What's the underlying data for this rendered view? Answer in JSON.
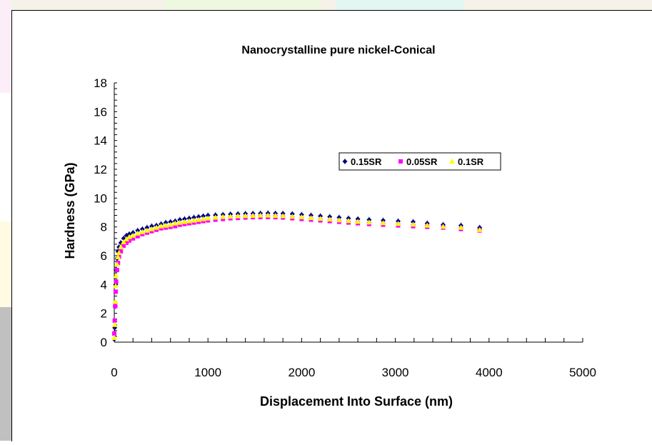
{
  "colors": {
    "series_0": "#000080",
    "series_1": "#ff00ff",
    "series_2": "#ffff00",
    "axis": "#000000",
    "background_edge": "#c0c0c0"
  },
  "legend": {
    "placement": "top-right"
  },
  "chart_data": {
    "type": "scatter",
    "title": "Nanocrystalline pure nickel-Conical",
    "xlabel": "Displacement Into Surface (nm)",
    "ylabel": "Hardness (GPa)",
    "xlim": [
      0,
      5000
    ],
    "ylim": [
      0,
      18
    ],
    "xticks": [
      "0",
      "1000",
      "2000",
      "3000",
      "4000",
      "5000"
    ],
    "yticks": [
      "0",
      "2",
      "4",
      "6",
      "8",
      "10",
      "12",
      "14",
      "16",
      "18"
    ],
    "grid": false,
    "series": [
      {
        "name": "0.15SR",
        "marker": "diamond",
        "points": [
          [
            0,
            0.2
          ],
          [
            5,
            1
          ],
          [
            10,
            2.5
          ],
          [
            15,
            4
          ],
          [
            20,
            5
          ],
          [
            30,
            5.8
          ],
          [
            40,
            6.3
          ],
          [
            50,
            6.6
          ],
          [
            70,
            6.9
          ],
          [
            100,
            7.2
          ],
          [
            130,
            7.4
          ],
          [
            160,
            7.5
          ],
          [
            200,
            7.6
          ],
          [
            250,
            7.75
          ],
          [
            300,
            7.85
          ],
          [
            350,
            7.95
          ],
          [
            400,
            8.05
          ],
          [
            450,
            8.1
          ],
          [
            500,
            8.2
          ],
          [
            550,
            8.3
          ],
          [
            600,
            8.35
          ],
          [
            650,
            8.4
          ],
          [
            700,
            8.5
          ],
          [
            750,
            8.55
          ],
          [
            800,
            8.6
          ],
          [
            850,
            8.65
          ],
          [
            900,
            8.7
          ],
          [
            950,
            8.75
          ],
          [
            1000,
            8.8
          ],
          [
            1080,
            8.82
          ],
          [
            1160,
            8.85
          ],
          [
            1240,
            8.88
          ],
          [
            1320,
            8.9
          ],
          [
            1400,
            8.92
          ],
          [
            1480,
            8.93
          ],
          [
            1560,
            8.94
          ],
          [
            1640,
            8.95
          ],
          [
            1720,
            8.94
          ],
          [
            1800,
            8.93
          ],
          [
            1900,
            8.9
          ],
          [
            2000,
            8.85
          ],
          [
            2100,
            8.8
          ],
          [
            2200,
            8.75
          ],
          [
            2300,
            8.7
          ],
          [
            2400,
            8.65
          ],
          [
            2500,
            8.6
          ],
          [
            2600,
            8.55
          ],
          [
            2720,
            8.5
          ],
          [
            2870,
            8.45
          ],
          [
            3030,
            8.4
          ],
          [
            3190,
            8.35
          ],
          [
            3340,
            8.25
          ],
          [
            3510,
            8.15
          ],
          [
            3700,
            8.1
          ],
          [
            3900,
            7.95
          ]
        ]
      },
      {
        "name": "0.05SR",
        "marker": "square",
        "points": [
          [
            0,
            0.6
          ],
          [
            5,
            1.5
          ],
          [
            10,
            2.5
          ],
          [
            15,
            3.5
          ],
          [
            20,
            4.2
          ],
          [
            30,
            5
          ],
          [
            40,
            5.5
          ],
          [
            50,
            5.9
          ],
          [
            70,
            6.3
          ],
          [
            100,
            6.7
          ],
          [
            130,
            6.9
          ],
          [
            160,
            7.05
          ],
          [
            200,
            7.2
          ],
          [
            250,
            7.35
          ],
          [
            300,
            7.5
          ],
          [
            350,
            7.6
          ],
          [
            400,
            7.7
          ],
          [
            450,
            7.8
          ],
          [
            500,
            7.9
          ],
          [
            550,
            7.95
          ],
          [
            600,
            8
          ],
          [
            650,
            8.05
          ],
          [
            700,
            8.15
          ],
          [
            750,
            8.2
          ],
          [
            800,
            8.25
          ],
          [
            850,
            8.3
          ],
          [
            900,
            8.35
          ],
          [
            950,
            8.4
          ],
          [
            1000,
            8.45
          ],
          [
            1080,
            8.5
          ],
          [
            1160,
            8.55
          ],
          [
            1240,
            8.6
          ],
          [
            1320,
            8.62
          ],
          [
            1400,
            8.65
          ],
          [
            1480,
            8.67
          ],
          [
            1560,
            8.68
          ],
          [
            1640,
            8.68
          ],
          [
            1720,
            8.67
          ],
          [
            1800,
            8.65
          ],
          [
            1900,
            8.6
          ],
          [
            2000,
            8.55
          ],
          [
            2100,
            8.5
          ],
          [
            2200,
            8.45
          ],
          [
            2300,
            8.4
          ],
          [
            2400,
            8.35
          ],
          [
            2500,
            8.3
          ],
          [
            2600,
            8.25
          ],
          [
            2720,
            8.2
          ],
          [
            2870,
            8.15
          ],
          [
            3030,
            8.1
          ],
          [
            3190,
            8.05
          ],
          [
            3340,
            8
          ],
          [
            3510,
            7.95
          ],
          [
            3700,
            7.85
          ],
          [
            3900,
            7.75
          ]
        ]
      },
      {
        "name": "0.1SR",
        "marker": "triangle",
        "points": [
          [
            0,
            0.3
          ],
          [
            5,
            1.2
          ],
          [
            10,
            2.8
          ],
          [
            15,
            3.9
          ],
          [
            20,
            4.6
          ],
          [
            30,
            5.4
          ],
          [
            40,
            5.9
          ],
          [
            50,
            6.2
          ],
          [
            70,
            6.6
          ],
          [
            100,
            6.95
          ],
          [
            130,
            7.15
          ],
          [
            160,
            7.3
          ],
          [
            200,
            7.4
          ],
          [
            250,
            7.55
          ],
          [
            300,
            7.65
          ],
          [
            350,
            7.75
          ],
          [
            400,
            7.85
          ],
          [
            450,
            7.95
          ],
          [
            500,
            8.05
          ],
          [
            550,
            8.1
          ],
          [
            600,
            8.15
          ],
          [
            650,
            8.25
          ],
          [
            700,
            8.3
          ],
          [
            750,
            8.35
          ],
          [
            800,
            8.4
          ],
          [
            850,
            8.45
          ],
          [
            900,
            8.5
          ],
          [
            950,
            8.55
          ],
          [
            1000,
            8.6
          ],
          [
            1080,
            8.65
          ],
          [
            1160,
            8.7
          ],
          [
            1240,
            8.72
          ],
          [
            1320,
            8.75
          ],
          [
            1400,
            8.77
          ],
          [
            1480,
            8.78
          ],
          [
            1560,
            8.8
          ],
          [
            1640,
            8.8
          ],
          [
            1720,
            8.78
          ],
          [
            1800,
            8.76
          ],
          [
            1900,
            8.72
          ],
          [
            2000,
            8.68
          ],
          [
            2100,
            8.62
          ],
          [
            2200,
            8.57
          ],
          [
            2300,
            8.52
          ],
          [
            2400,
            8.47
          ],
          [
            2500,
            8.42
          ],
          [
            2600,
            8.37
          ],
          [
            2720,
            8.32
          ],
          [
            2870,
            8.27
          ],
          [
            3030,
            8.22
          ],
          [
            3190,
            8.17
          ],
          [
            3340,
            8.1
          ],
          [
            3510,
            8.02
          ],
          [
            3700,
            7.95
          ],
          [
            3900,
            7.8
          ]
        ]
      }
    ]
  }
}
